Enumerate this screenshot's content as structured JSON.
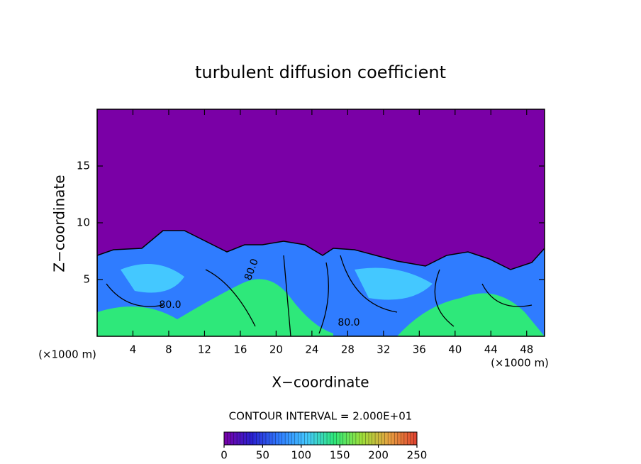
{
  "chart_data": {
    "type": "contour",
    "title": "turbulent diffusion coefficient",
    "xlabel": "X−coordinate",
    "ylabel": "Z−coordinate",
    "unit_labels": [
      "(×1000 m)",
      "(×1000 m)"
    ],
    "xlim": [
      0,
      50
    ],
    "ylim": [
      0,
      20
    ],
    "xticks": [
      4,
      8,
      12,
      16,
      20,
      24,
      28,
      32,
      36,
      40,
      44,
      48
    ],
    "yticks": [
      5,
      10,
      15
    ],
    "contour_interval_text": "CONTOUR INTERVAL = 2.000E+01",
    "contour_labels": [
      "80.0",
      "80.0",
      "80.0"
    ],
    "colorbar": {
      "lim": [
        0,
        250
      ],
      "ticks": [
        0,
        50,
        100,
        150,
        200,
        250
      ],
      "colors": [
        "#7a00a6",
        "#2a20d0",
        "#2f7cff",
        "#44c8ff",
        "#2ee87a",
        "#9fe03a",
        "#e8a040",
        "#e04030"
      ]
    }
  }
}
